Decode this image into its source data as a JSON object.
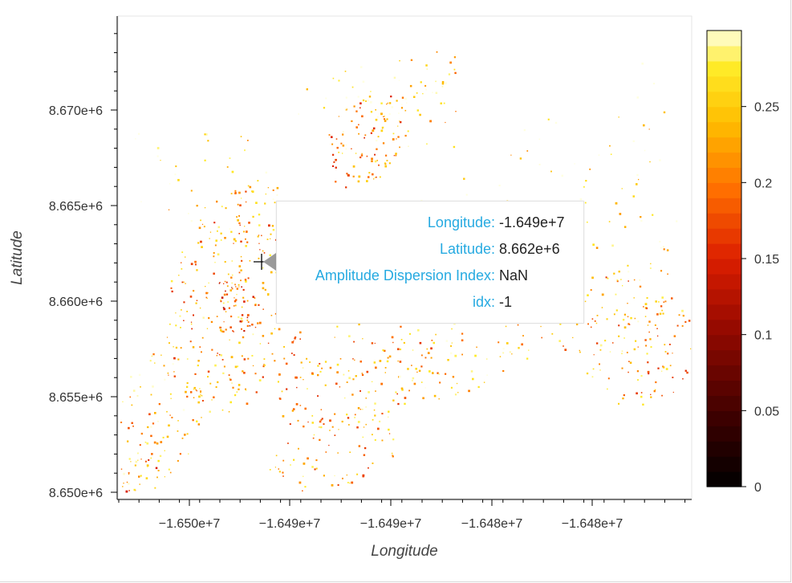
{
  "chart_data": {
    "type": "heatmap",
    "title": "",
    "xlabel": "Longitude",
    "ylabel": "Latitude",
    "x_ticks": [
      "−1.650e+7",
      "−1.649e+7",
      "−1.649e+7",
      "−1.648e+7",
      "−1.648e+7"
    ],
    "y_ticks": [
      "8.650e+6",
      "8.655e+6",
      "8.660e+6",
      "8.665e+6",
      "8.670e+6"
    ],
    "xlim": [
      -16504600,
      -16475500
    ],
    "ylim": [
      8649600,
      8674800
    ],
    "colorbar": {
      "range": [
        0,
        0.3
      ],
      "ticks": [
        "0",
        "0.05",
        "0.1",
        "0.15",
        "0.2",
        "0.25"
      ],
      "colormap": "fire-reversed"
    },
    "grid": false,
    "crosshair": {
      "x": -16492400,
      "y": 8662100
    }
  },
  "tooltip": {
    "rows": [
      {
        "label": "Longitude:",
        "value": "-1.649e+7"
      },
      {
        "label": "Latitude:",
        "value": "8.662e+6"
      },
      {
        "label": "Amplitude Dispersion Index:",
        "value": "NaN"
      },
      {
        "label": "idx:",
        "value": "-1"
      }
    ],
    "label_color": "#26aae1",
    "value_color": "#222222"
  }
}
